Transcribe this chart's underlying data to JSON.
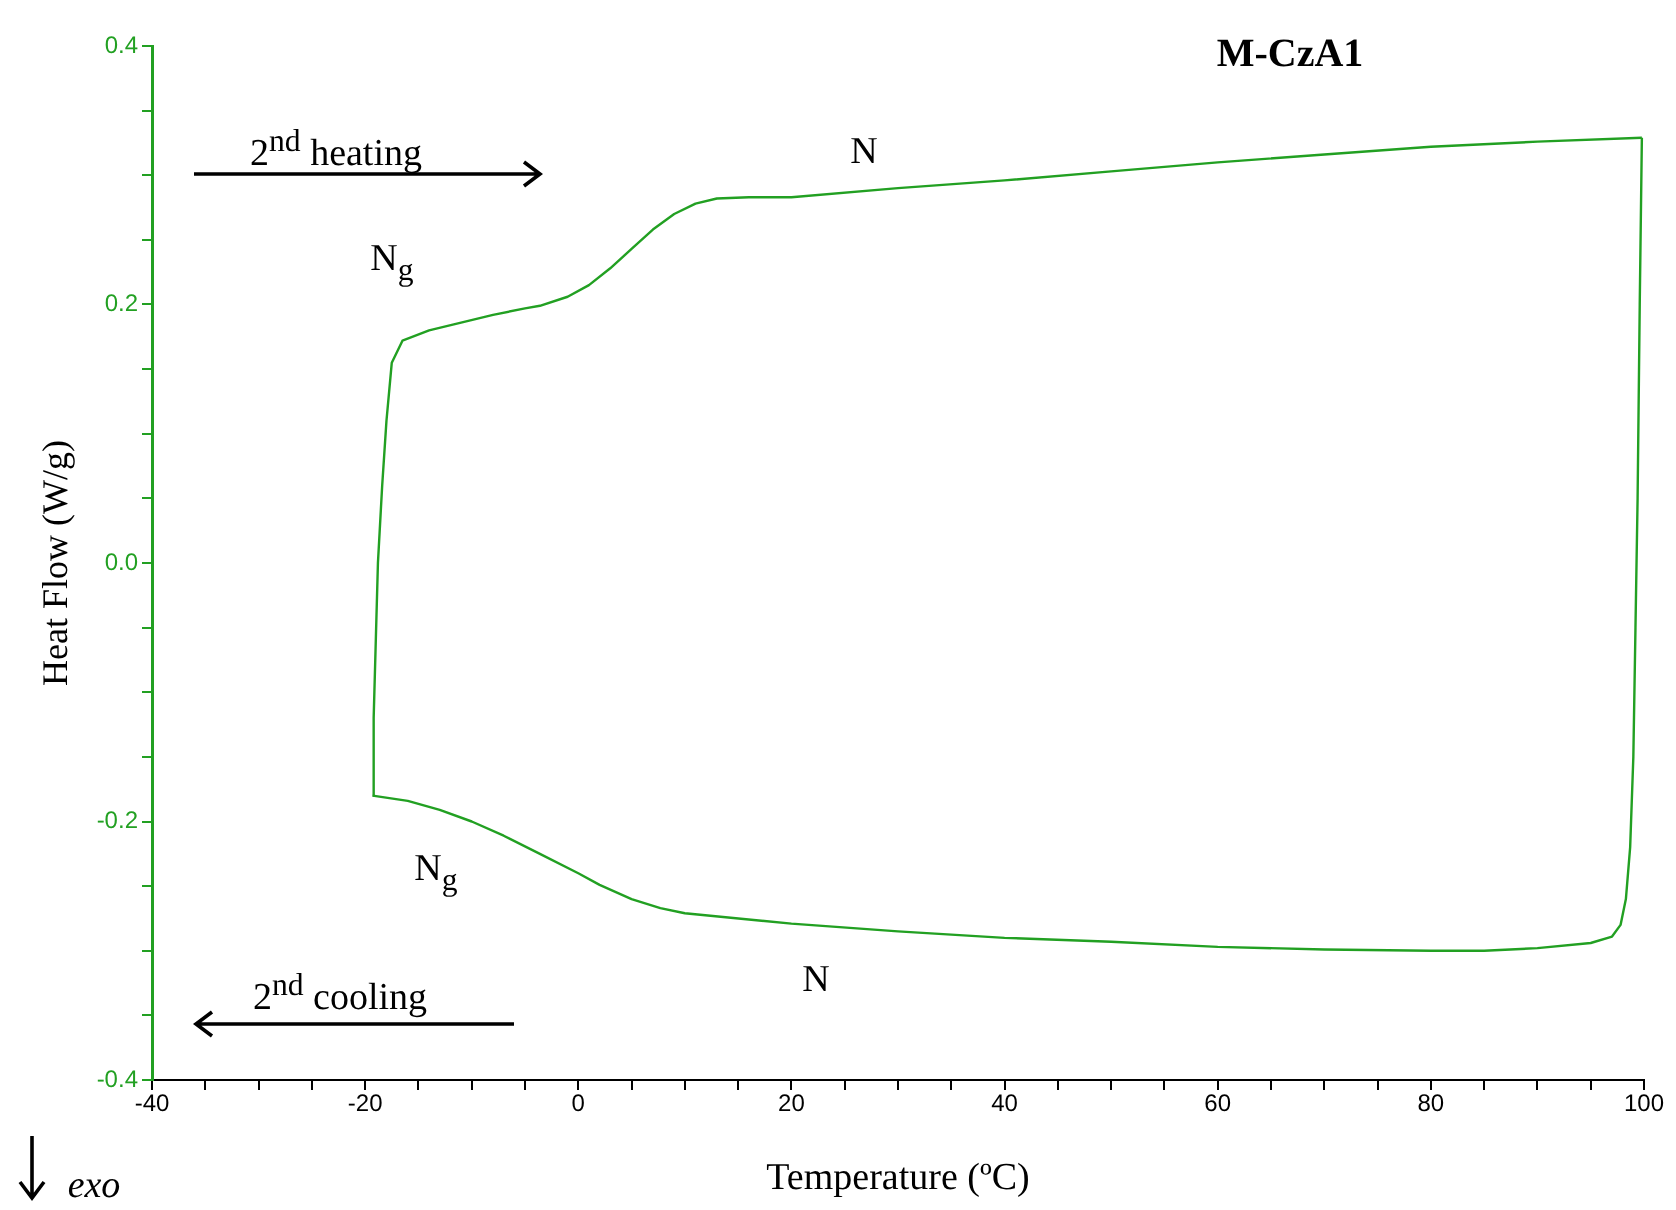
{
  "chart_data": {
    "type": "line",
    "title": "M-CzA1",
    "xlabel": "Temperature (ºC)",
    "ylabel": "Heat Flow (W/g)",
    "annotations": [
      "2$^{nd}$ heating",
      "N$_{g}$",
      "N",
      "N$_{g}$",
      "N",
      "2$^{nd}$ cooling",
      "exo"
    ],
    "series": [
      {
        "color": "#22a022",
        "x": [
          -19.3,
          -19.2,
          -19.0,
          -18.8,
          -18.4,
          -18.0,
          -17.5,
          -16.5,
          -14,
          -11,
          -8,
          -5,
          -3.6,
          -1,
          1,
          3,
          5,
          7,
          9,
          11,
          13,
          16,
          20,
          30,
          40,
          50,
          60,
          70,
          80,
          90,
          99.8
        ],
        "values": [
          -0.18,
          -0.12,
          -0.06,
          0.0,
          0.06,
          0.11,
          0.155,
          0.172,
          0.18,
          0.186,
          0.192,
          0.197,
          0.199,
          0.206,
          0.215,
          0.228,
          0.243,
          0.258,
          0.27,
          0.278,
          0.282,
          0.283,
          0.283,
          0.29,
          0.296,
          0.303,
          0.31,
          0.316,
          0.322,
          0.326,
          0.329
        ]
      },
      {
        "color": "#22a022",
        "x": [
          99.8,
          99.6,
          99.4,
          99.2,
          99.0,
          98.7,
          98.3,
          97.8,
          97,
          95,
          90,
          85,
          80,
          70,
          60,
          50,
          40,
          30,
          20,
          10,
          7.7,
          5,
          2,
          0,
          -3.6,
          -7,
          -10,
          -13,
          -16,
          -19.3
        ],
        "values": [
          0.329,
          0.2,
          0.05,
          -0.05,
          -0.15,
          -0.22,
          -0.26,
          -0.28,
          -0.289,
          -0.294,
          -0.298,
          -0.3,
          -0.3,
          -0.299,
          -0.297,
          -0.293,
          -0.29,
          -0.285,
          -0.279,
          -0.271,
          -0.267,
          -0.26,
          -0.249,
          -0.24,
          -0.225,
          -0.211,
          -0.2,
          -0.191,
          -0.184,
          -0.18
        ]
      }
    ],
    "marker": "none",
    "legend": false,
    "grid": false,
    "xlim": [
      -40,
      100
    ],
    "ylim": [
      -0.4,
      0.4
    ],
    "xticks": [
      -40,
      {
        "value": -35,
        "label": null
      },
      {
        "value": -30,
        "label": null
      },
      {
        "value": -25,
        "label": null
      },
      -20,
      {
        "value": -15,
        "label": null
      },
      {
        "value": -10,
        "label": null
      },
      {
        "value": -5,
        "label": null
      },
      0,
      {
        "value": 5,
        "label": null
      },
      {
        "value": 10,
        "label": null
      },
      {
        "value": 15,
        "label": null
      },
      20,
      {
        "value": 25,
        "label": null
      },
      {
        "value": 30,
        "label": null
      },
      {
        "value": 35,
        "label": null
      },
      40,
      {
        "value": 45,
        "label": null
      },
      {
        "value": 50,
        "label": null
      },
      {
        "value": 55,
        "label": null
      },
      60,
      {
        "value": 65,
        "label": null
      },
      {
        "value": 70,
        "label": null
      },
      {
        "value": 75,
        "label": null
      },
      80,
      {
        "value": 85,
        "label": null
      },
      {
        "value": 90,
        "label": null
      },
      {
        "value": 95,
        "label": null
      },
      100
    ],
    "yticks": [
      -0.4,
      {
        "value": -0.35,
        "label": null
      },
      {
        "value": -0.3,
        "label": null
      },
      {
        "value": -0.25,
        "label": null
      },
      -0.2,
      {
        "value": -0.15,
        "label": null
      },
      {
        "value": -0.1,
        "label": null
      },
      {
        "value": -0.05,
        "label": null
      },
      {
        "value": 0,
        "label": "0.0"
      },
      {
        "value": 0.05,
        "label": null
      },
      {
        "value": 0.1,
        "label": null
      },
      {
        "value": 0.15,
        "label": null
      },
      0.2,
      {
        "value": 0.25,
        "label": null
      },
      {
        "value": 0.3,
        "label": null
      },
      {
        "value": 0.35,
        "label": null
      },
      0.4
    ]
  }
}
